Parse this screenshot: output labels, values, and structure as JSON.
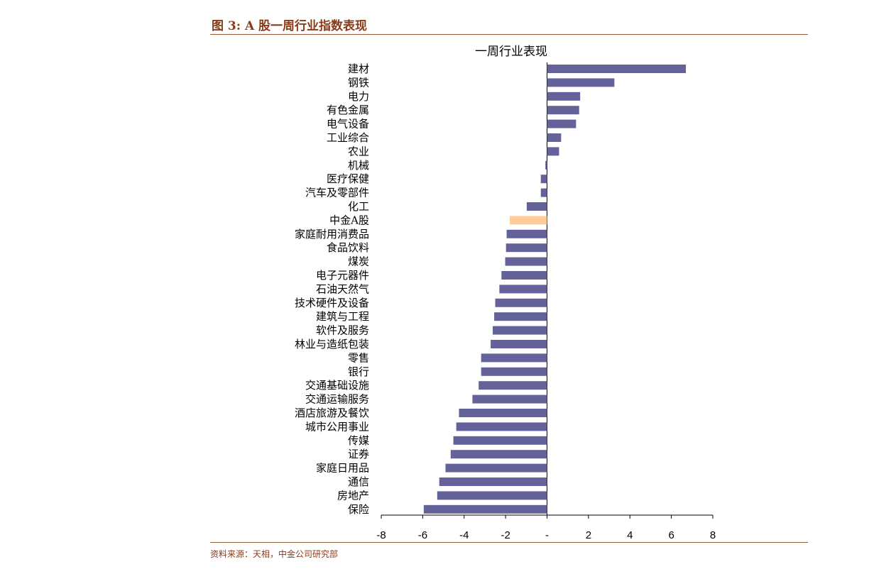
{
  "figure": {
    "title": "图 3:  A 股一周行业指数表现",
    "source": "资料来源：天相，中金公司研究部"
  },
  "colors": {
    "bar": "#636399",
    "highlight": "#ffcc99",
    "header_text": "#8a3b1a"
  },
  "chart_data": {
    "type": "bar",
    "orientation": "horizontal",
    "title": "一周行业表现",
    "xlabel": "",
    "ylabel": "",
    "xlim": [
      -8,
      8
    ],
    "ticks": [
      -8,
      -6,
      -4,
      -2,
      0,
      2,
      4,
      6,
      8
    ],
    "tick_labels": [
      "-8",
      "-6",
      "-4",
      "-2",
      "-",
      "2",
      "4",
      "6",
      "8"
    ],
    "grid": false,
    "highlight_category": "中金A股",
    "categories": [
      "建材",
      "钢铁",
      "电力",
      "有色金属",
      "电气设备",
      "工业综合",
      "农业",
      "机械",
      "医疗保健",
      "汽车及零部件",
      "化工",
      "中金A股",
      "家庭耐用消费品",
      "食品饮料",
      "煤炭",
      "电子元器件",
      "石油天然气",
      "技术硬件及设备",
      "建筑与工程",
      "软件及服务",
      "林业与造纸包装",
      "零售",
      "银行",
      "交通基础设施",
      "交通运输服务",
      "酒店旅游及餐饮",
      "城市公用事业",
      "传媒",
      "证券",
      "家庭日用品",
      "通信",
      "房地产",
      "保险"
    ],
    "values": [
      6.7,
      3.25,
      1.6,
      1.55,
      1.4,
      0.68,
      0.58,
      -0.08,
      -0.3,
      -0.3,
      -0.98,
      -1.8,
      -1.95,
      -1.98,
      -2.02,
      -2.2,
      -2.3,
      -2.5,
      -2.55,
      -2.62,
      -2.72,
      -3.18,
      -3.18,
      -3.3,
      -3.6,
      -4.25,
      -4.38,
      -4.52,
      -4.65,
      -4.9,
      -5.2,
      -5.3,
      -5.95
    ]
  }
}
